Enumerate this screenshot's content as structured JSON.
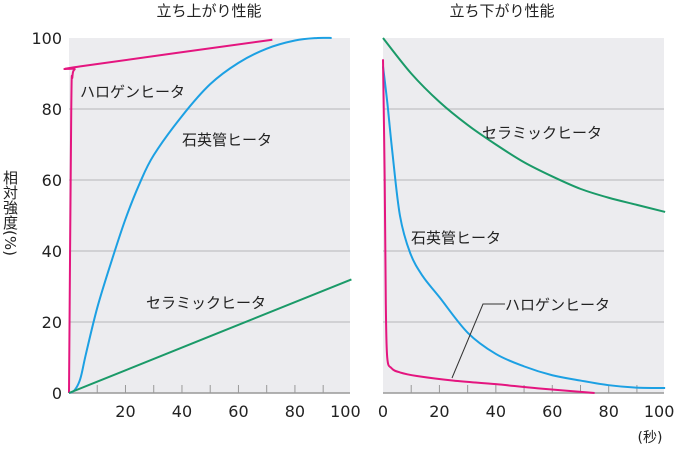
{
  "chart_data": [
    {
      "type": "line",
      "title": "立ち上がり性能",
      "ylabel": "相対強度(%)",
      "xlabel": "",
      "xlim": [
        0,
        99.5
      ],
      "ylim": [
        0,
        100
      ],
      "xticks": [
        20,
        40,
        60,
        80,
        100
      ],
      "xminor": [
        10,
        20,
        30,
        40,
        50,
        60,
        70,
        80,
        90
      ],
      "yticks": [
        0,
        20,
        40,
        60,
        80,
        100
      ],
      "grid": true,
      "series": [
        {
          "name": "ハロゲンヒータ",
          "color": "#e4157f",
          "points": [
            [
              0,
              0
            ],
            [
              0.8,
              80
            ],
            [
              1.2,
              89
            ],
            [
              2,
              91.2
            ],
            [
              4,
              92
            ],
            [
              72,
              99.5
            ]
          ]
        },
        {
          "name": "石英管ヒータ",
          "color": "#1ca0e3",
          "points": [
            [
              0,
              0
            ],
            [
              2,
              0.8
            ],
            [
              4,
              4
            ],
            [
              6,
              11
            ],
            [
              10,
              24
            ],
            [
              15,
              37
            ],
            [
              20,
              49
            ],
            [
              25,
              59
            ],
            [
              30,
              67
            ],
            [
              40,
              78
            ],
            [
              50,
              87
            ],
            [
              60,
              93
            ],
            [
              70,
              97
            ],
            [
              80,
              99.3
            ],
            [
              88,
              100
            ],
            [
              93,
              100
            ]
          ]
        },
        {
          "name": "セラミックヒータ",
          "color": "#1a9a68",
          "points": [
            [
              0,
              0
            ],
            [
              100,
              32
            ]
          ]
        }
      ]
    },
    {
      "type": "line",
      "title": "立ち下がり性能",
      "xlabel": "(秒)",
      "xlim": [
        0,
        99.6
      ],
      "ylim": [
        0,
        100
      ],
      "xticks": [
        0,
        20,
        40,
        60,
        80,
        100
      ],
      "xminor": [
        10,
        20,
        30,
        40,
        50,
        60,
        70,
        80,
        90
      ],
      "yticks": [
        0,
        20,
        40,
        60,
        80,
        100
      ],
      "grid": true,
      "series": [
        {
          "name": "セラミックヒータ",
          "color": "#1a9a68",
          "points": [
            [
              0,
              100
            ],
            [
              10,
              90
            ],
            [
              20,
              82
            ],
            [
              30,
              75.5
            ],
            [
              40,
              70
            ],
            [
              50,
              65
            ],
            [
              60,
              61
            ],
            [
              70,
              57.5
            ],
            [
              80,
              55
            ],
            [
              90,
              53
            ],
            [
              100,
              51
            ]
          ]
        },
        {
          "name": "石英管ヒータ",
          "color": "#1ca0e3",
          "points": [
            [
              0,
              92
            ],
            [
              1.5,
              82
            ],
            [
              3.3,
              68
            ],
            [
              6,
              50
            ],
            [
              9.6,
              39.5
            ],
            [
              14,
              33
            ],
            [
              20,
              27
            ],
            [
              30,
              17
            ],
            [
              40,
              11
            ],
            [
              50,
              7.5
            ],
            [
              60,
              5
            ],
            [
              70,
              3.5
            ],
            [
              80,
              2.2
            ],
            [
              90,
              1.5
            ],
            [
              100,
              1.4
            ]
          ]
        },
        {
          "name": "ハロゲンヒータ",
          "color": "#e4157f",
          "points": [
            [
              0,
              94
            ],
            [
              0.6,
              60
            ],
            [
              1,
              25
            ],
            [
              1.5,
              10
            ],
            [
              3,
              7
            ],
            [
              6,
              5.8
            ],
            [
              12,
              4.8
            ],
            [
              25,
              3.5
            ],
            [
              40,
              2.5
            ],
            [
              55,
              1.3
            ],
            [
              75,
              0
            ]
          ]
        }
      ]
    }
  ]
}
